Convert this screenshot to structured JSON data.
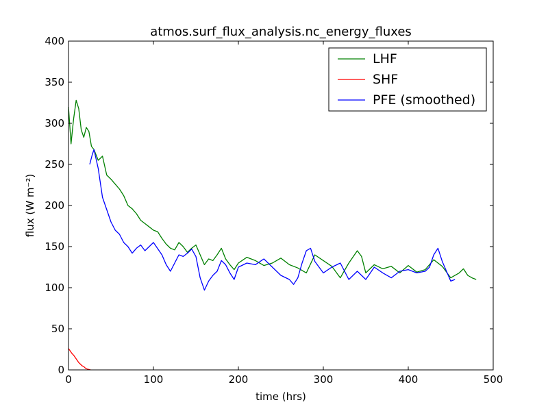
{
  "chart_data": {
    "type": "line",
    "title": "atmos.surf_flux_analysis.nc_energy_fluxes",
    "xlabel": "time (hrs)",
    "ylabel": "flux (W m⁻²)",
    "xlim": [
      0,
      500
    ],
    "ylim": [
      0,
      400
    ],
    "xticks": [
      0,
      100,
      200,
      300,
      400,
      500
    ],
    "yticks": [
      0,
      50,
      100,
      150,
      200,
      250,
      300,
      350,
      400
    ],
    "grid": false,
    "legend_position": "top-right",
    "series": [
      {
        "name": "LHF",
        "color": "#008000",
        "x": [
          0,
          3,
          6,
          9,
          12,
          15,
          18,
          21,
          24,
          27,
          30,
          35,
          40,
          45,
          50,
          55,
          60,
          65,
          70,
          75,
          80,
          85,
          90,
          95,
          100,
          105,
          110,
          115,
          120,
          125,
          130,
          135,
          140,
          145,
          150,
          155,
          160,
          165,
          170,
          175,
          180,
          185,
          190,
          195,
          200,
          210,
          220,
          230,
          240,
          250,
          260,
          270,
          280,
          290,
          300,
          310,
          320,
          330,
          340,
          345,
          350,
          360,
          370,
          380,
          390,
          400,
          410,
          420,
          430,
          440,
          450,
          460,
          465,
          470,
          475,
          480
        ],
        "y": [
          320,
          275,
          305,
          328,
          318,
          292,
          283,
          295,
          290,
          272,
          268,
          255,
          260,
          237,
          232,
          226,
          220,
          212,
          200,
          196,
          190,
          182,
          178,
          174,
          170,
          168,
          160,
          153,
          148,
          146,
          155,
          150,
          143,
          148,
          152,
          140,
          128,
          135,
          133,
          140,
          148,
          135,
          128,
          122,
          130,
          137,
          133,
          127,
          130,
          136,
          128,
          124,
          118,
          140,
          133,
          126,
          112,
          130,
          145,
          138,
          118,
          128,
          123,
          126,
          118,
          127,
          119,
          122,
          134,
          126,
          112,
          118,
          123,
          115,
          112,
          110
        ]
      },
      {
        "name": "SHF",
        "color": "#ff0000",
        "x": [
          0,
          2,
          4,
          6,
          8,
          10,
          12,
          14,
          16,
          18,
          20,
          22,
          24,
          26
        ],
        "y": [
          26,
          23,
          20,
          18,
          15,
          12,
          9,
          7,
          5,
          4,
          2,
          1,
          0.5,
          0
        ]
      },
      {
        "name": "PFE (smoothed)",
        "color": "#0000ff",
        "x": [
          25,
          28,
          30,
          35,
          40,
          45,
          50,
          55,
          60,
          65,
          70,
          75,
          80,
          85,
          90,
          95,
          100,
          110,
          115,
          120,
          125,
          130,
          135,
          140,
          145,
          150,
          155,
          160,
          165,
          170,
          175,
          180,
          185,
          190,
          195,
          200,
          210,
          220,
          230,
          240,
          250,
          260,
          265,
          270,
          275,
          280,
          285,
          290,
          300,
          310,
          320,
          330,
          340,
          350,
          360,
          370,
          380,
          390,
          400,
          410,
          420,
          425,
          430,
          435,
          440,
          445,
          450,
          455
        ],
        "y": [
          250,
          262,
          268,
          245,
          210,
          195,
          180,
          170,
          165,
          155,
          150,
          142,
          148,
          152,
          145,
          150,
          155,
          140,
          128,
          120,
          130,
          140,
          138,
          142,
          147,
          138,
          112,
          97,
          108,
          115,
          120,
          133,
          128,
          118,
          110,
          125,
          130,
          128,
          135,
          125,
          115,
          110,
          104,
          112,
          130,
          145,
          148,
          132,
          118,
          125,
          130,
          110,
          120,
          110,
          125,
          118,
          112,
          120,
          122,
          118,
          120,
          125,
          140,
          148,
          132,
          120,
          108,
          110
        ]
      }
    ]
  }
}
